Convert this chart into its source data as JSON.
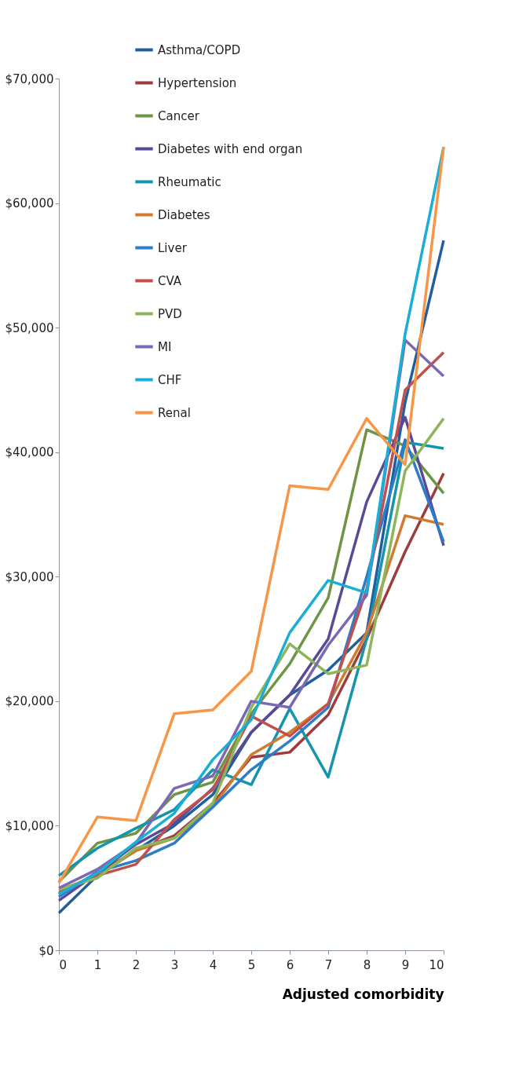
{
  "chart_data": {
    "type": "line",
    "xlabel": "Adjusted  comorbidity",
    "x": [
      0,
      1,
      2,
      3,
      4,
      5,
      6,
      7,
      8,
      9,
      10
    ],
    "xlim": [
      0,
      10
    ],
    "xticks": [
      0,
      1,
      2,
      3,
      4,
      5,
      6,
      7,
      8,
      9,
      10
    ],
    "ylim": [
      0,
      70000
    ],
    "yticks": [
      {
        "value": 0,
        "label": "$0"
      },
      {
        "value": 10000,
        "label": "$10,000"
      },
      {
        "value": 20000,
        "label": "$20,000"
      },
      {
        "value": 30000,
        "label": "$30,000"
      },
      {
        "value": 40000,
        "label": "$40,000"
      },
      {
        "value": 50000,
        "label": "$50,000"
      },
      {
        "value": 60000,
        "label": "$60,000"
      },
      {
        "value": 70000,
        "label": "$70,000"
      }
    ],
    "grid": false,
    "legend": "top left",
    "marker": "none",
    "line_style": "solid",
    "series": [
      {
        "name": "Asthma/COPD",
        "color": "#1f5f9e",
        "values": [
          3000,
          6000,
          8000,
          10000,
          12500,
          17500,
          20500,
          22500,
          25500,
          44000,
          57000
        ]
      },
      {
        "name": "Hypertension",
        "color": "#9e3b3b",
        "values": [
          4500,
          6200,
          8000,
          9200,
          11800,
          15500,
          15900,
          18900,
          25000,
          32000,
          38300
        ]
      },
      {
        "name": "Cancer",
        "color": "#6e9446",
        "values": [
          5500,
          8600,
          9400,
          12500,
          13500,
          19000,
          23000,
          28300,
          41800,
          40500,
          36700
        ]
      },
      {
        "name": "Diabetes with end organ",
        "color": "#5a4a96",
        "values": [
          4000,
          6200,
          8500,
          10200,
          13000,
          17500,
          20500,
          25000,
          36000,
          42800,
          32500
        ]
      },
      {
        "name": "Rheumatic",
        "color": "#1794ad",
        "values": [
          6000,
          8200,
          9800,
          11300,
          14500,
          13300,
          19400,
          13900,
          25000,
          40800,
          40300
        ]
      },
      {
        "name": "Diabetes",
        "color": "#d17a30",
        "values": [
          4800,
          6000,
          8000,
          9000,
          11500,
          15700,
          17500,
          19800,
          25500,
          34900,
          34200
        ]
      },
      {
        "name": "Liver",
        "color": "#2b7cc9",
        "values": [
          4300,
          6300,
          7200,
          8600,
          11500,
          14500,
          16800,
          19500,
          30000,
          41000,
          32800
        ]
      },
      {
        "name": "CVA",
        "color": "#c0504d",
        "values": [
          4600,
          6000,
          6900,
          10500,
          12900,
          18800,
          17200,
          19800,
          29000,
          45000,
          48000
        ]
      },
      {
        "name": "PVD",
        "color": "#8db55b",
        "values": [
          4900,
          5800,
          8200,
          9000,
          11800,
          19500,
          24600,
          22200,
          22900,
          38500,
          42700
        ]
      },
      {
        "name": "MI",
        "color": "#7a68b4",
        "values": [
          5000,
          6500,
          8600,
          13000,
          14000,
          20000,
          19500,
          24500,
          28500,
          49000,
          46100
        ]
      },
      {
        "name": "CHF",
        "color": "#1aaed6",
        "values": [
          4500,
          6200,
          8700,
          11000,
          15300,
          18500,
          25500,
          29700,
          28700,
          49500,
          64500
        ]
      },
      {
        "name": "Renal",
        "color": "#f79646",
        "values": [
          5400,
          10700,
          10400,
          19000,
          19300,
          22400,
          37300,
          37000,
          42700,
          39000,
          64500
        ]
      }
    ]
  }
}
